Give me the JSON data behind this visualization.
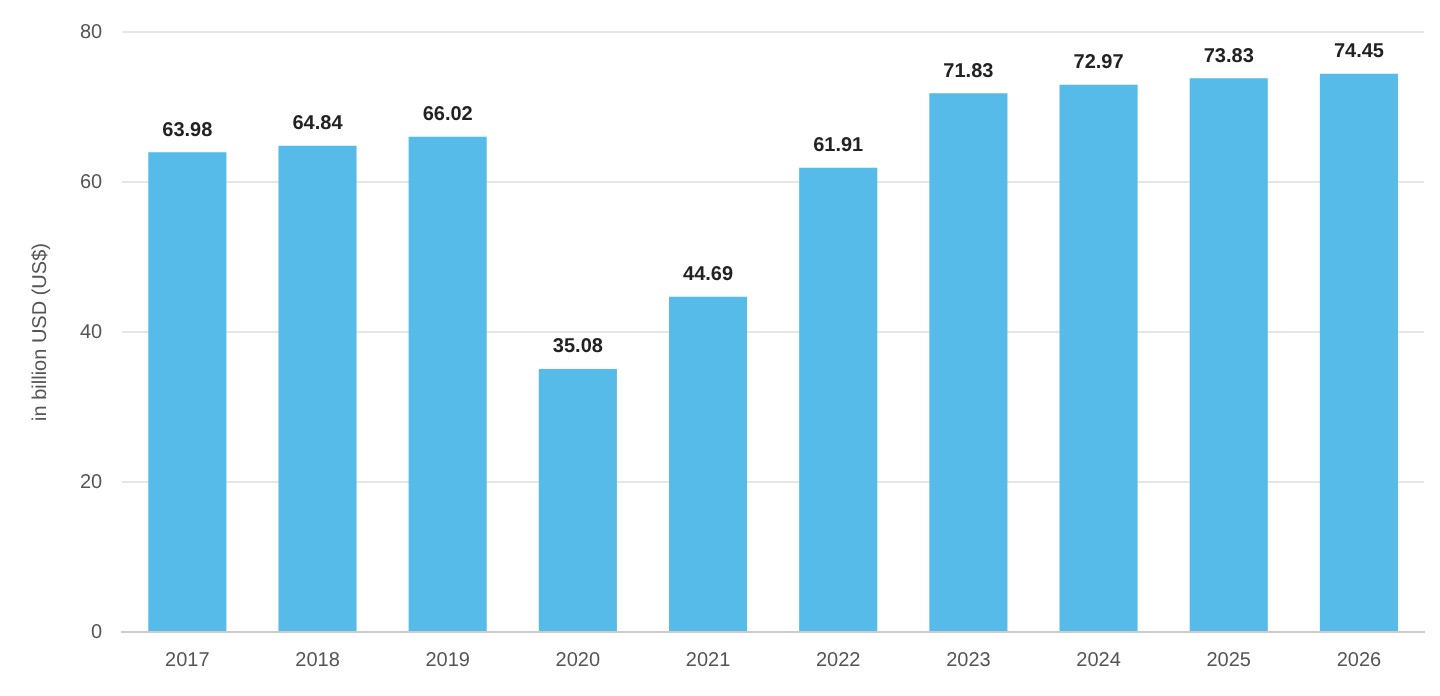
{
  "chart_data": {
    "type": "bar",
    "ylabel": "in billion USD (US$)",
    "categories": [
      "2017",
      "2018",
      "2019",
      "2020",
      "2021",
      "2022",
      "2023",
      "2024",
      "2025",
      "2026"
    ],
    "values": [
      63.98,
      64.84,
      66.02,
      35.08,
      44.69,
      61.91,
      71.83,
      72.97,
      73.83,
      74.45
    ],
    "color": "#56bbe8",
    "ylim": [
      0,
      80
    ],
    "yticks": [
      0,
      20,
      40,
      60,
      80
    ],
    "grid": "y",
    "data_labels": true,
    "legend": false
  }
}
